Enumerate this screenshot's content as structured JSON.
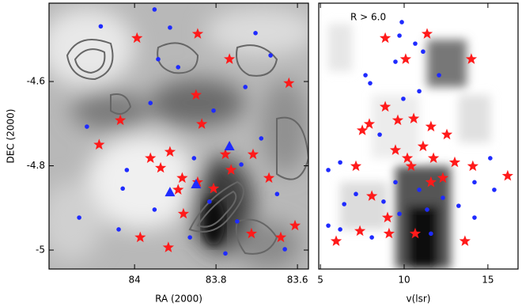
{
  "chart_data": [
    {
      "type": "scatter",
      "xlabel": "RA (2000)",
      "ylabel": "DEC (2000)",
      "xlim": [
        84.21,
        83.573
      ],
      "ylim": [
        -5.045,
        -4.414
      ],
      "xticks": [
        84,
        83.8,
        83.6
      ],
      "yticks": [
        -4.6,
        -4.8,
        -5
      ],
      "series": [
        {
          "marker": "circle",
          "color": "#1f2bff",
          "x": [
            84.083,
            83.951,
            83.913,
            83.703,
            83.666,
            83.942,
            83.893,
            83.728,
            83.961,
            84.117,
            83.806,
            83.689,
            84.019,
            83.854,
            83.738,
            84.029,
            83.816,
            83.65,
            83.951,
            84.136,
            84.039,
            83.748,
            83.777,
            83.631,
            83.864
          ],
          "y": [
            -4.469,
            -4.429,
            -4.472,
            -4.485,
            -4.538,
            -4.547,
            -4.566,
            -4.613,
            -4.651,
            -4.707,
            -4.669,
            -4.735,
            -4.81,
            -4.782,
            -4.797,
            -4.854,
            -4.885,
            -4.867,
            -4.904,
            -4.923,
            -4.951,
            -4.932,
            -5.008,
            -4.998,
            -4.97
          ]
        },
        {
          "marker": "star",
          "color": "#ff1a1a",
          "x": [
            83.994,
            83.845,
            83.767,
            83.621,
            83.849,
            84.035,
            84.087,
            83.835,
            83.913,
            83.961,
            83.936,
            83.777,
            83.709,
            83.763,
            83.883,
            83.845,
            83.893,
            83.806,
            83.88,
            83.986,
            83.917,
            83.713,
            83.641,
            83.606,
            83.67
          ],
          "y": [
            -4.497,
            -4.487,
            -4.547,
            -4.604,
            -4.632,
            -4.692,
            -4.75,
            -4.701,
            -4.767,
            -4.782,
            -4.805,
            -4.773,
            -4.773,
            -4.81,
            -4.829,
            -4.839,
            -4.857,
            -4.854,
            -4.914,
            -4.97,
            -4.994,
            -4.961,
            -4.97,
            -4.942,
            -4.829
          ]
        },
        {
          "marker": "triangle",
          "color": "#1f2bff",
          "x": [
            83.767,
            83.913,
            83.849
          ],
          "y": [
            -4.754,
            -4.863,
            -4.844
          ]
        }
      ]
    },
    {
      "type": "scatter",
      "xlabel": "v(lsr)",
      "annotation": "R > 6.0",
      "xlim": [
        4.9,
        16.8
      ],
      "ylim": [
        -5.045,
        -4.414
      ],
      "xticks": [
        5,
        10,
        15
      ],
      "series": [
        {
          "marker": "circle",
          "color": "#1f2bff",
          "x": [
            9.86,
            9.72,
            10.66,
            11.13,
            9.48,
            12.08,
            7.69,
            7.97,
            10.9,
            9.95,
            8.54,
            6.18,
            5.47,
            9.48,
            10.9,
            14.2,
            15.38,
            7.12,
            12.31,
            8.77,
            6.42,
            15.14,
            11.37,
            9.72,
            13.25,
            5.47,
            6.18,
            11.6,
            8.07,
            14.2
          ],
          "y": [
            -4.459,
            -4.491,
            -4.51,
            -4.529,
            -4.553,
            -4.585,
            -4.585,
            -4.604,
            -4.623,
            -4.641,
            -4.726,
            -4.792,
            -4.81,
            -4.839,
            -4.857,
            -4.839,
            -4.857,
            -4.867,
            -4.876,
            -4.885,
            -4.891,
            -4.782,
            -4.904,
            -4.914,
            -4.895,
            -4.942,
            -4.951,
            -4.961,
            -4.97,
            -4.923
          ]
        },
        {
          "marker": "star",
          "color": "#ff1a1a",
          "x": [
            8.87,
            10.09,
            11.37,
            14.01,
            8.87,
            9.62,
            10.57,
            7.92,
            7.5,
            11.6,
            12.55,
            11.13,
            9.48,
            10.19,
            11.75,
            13.02,
            14.1,
            7.12,
            10.42,
            8.07,
            9.01,
            10.66,
            9.1,
            7.36,
            5.94,
            13.63,
            16.18,
            11.6,
            12.31
          ],
          "y": [
            -4.497,
            -4.547,
            -4.487,
            -4.547,
            -4.66,
            -4.692,
            -4.688,
            -4.701,
            -4.716,
            -4.707,
            -4.726,
            -4.754,
            -4.763,
            -4.782,
            -4.782,
            -4.792,
            -4.801,
            -4.801,
            -4.801,
            -4.872,
            -4.923,
            -4.961,
            -4.961,
            -4.955,
            -4.979,
            -4.979,
            -4.824,
            -4.839,
            -4.829
          ]
        }
      ]
    }
  ]
}
